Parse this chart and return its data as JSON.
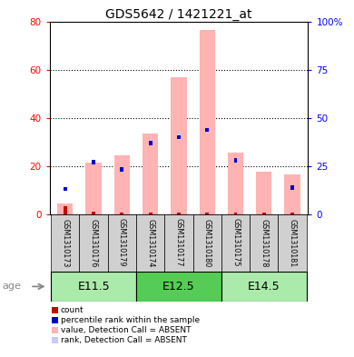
{
  "title": "GDS5642 / 1421221_at",
  "samples": [
    "GSM1310173",
    "GSM1310176",
    "GSM1310179",
    "GSM1310174",
    "GSM1310177",
    "GSM1310180",
    "GSM1310175",
    "GSM1310178",
    "GSM1310181"
  ],
  "age_groups": [
    {
      "label": "E11.5",
      "start": 0,
      "end": 3
    },
    {
      "label": "E12.5",
      "start": 3,
      "end": 6
    },
    {
      "label": "E14.5",
      "start": 6,
      "end": 9
    }
  ],
  "value_absent": [
    4.5,
    21.5,
    24.5,
    33.5,
    57.0,
    76.5,
    25.5,
    17.5,
    16.5
  ],
  "rank_absent": [
    10.5,
    0,
    18.5,
    30.0,
    32.5,
    35.0,
    22.5,
    0,
    11.0
  ],
  "count_red": [
    3.5,
    1.0,
    0.5,
    0.5,
    0.5,
    0.5,
    0.5,
    0.5,
    0.5
  ],
  "percentile_blue": [
    10.5,
    21.5,
    18.5,
    29.5,
    32.0,
    35.0,
    22.5,
    0,
    11.0
  ],
  "ylim_left": [
    0,
    80
  ],
  "ylim_right": [
    0,
    100
  ],
  "yticks_left": [
    0,
    20,
    40,
    60,
    80
  ],
  "yticks_right": [
    0,
    25,
    50,
    75,
    100
  ],
  "yticklabels_right": [
    "0",
    "25",
    "50",
    "75",
    "100%"
  ],
  "color_value_absent": "#FFB3B3",
  "color_rank_absent": "#C8C8FF",
  "color_count": "#CC0000",
  "color_percentile": "#0000CC",
  "bg_color": "#FFFFFF",
  "bar_width": 0.55,
  "legend_items": [
    {
      "color": "#CC0000",
      "label": "count"
    },
    {
      "color": "#0000CC",
      "label": "percentile rank within the sample"
    },
    {
      "color": "#FFB3B3",
      "label": "value, Detection Call = ABSENT"
    },
    {
      "color": "#C8C8FF",
      "label": "rank, Detection Call = ABSENT"
    }
  ]
}
